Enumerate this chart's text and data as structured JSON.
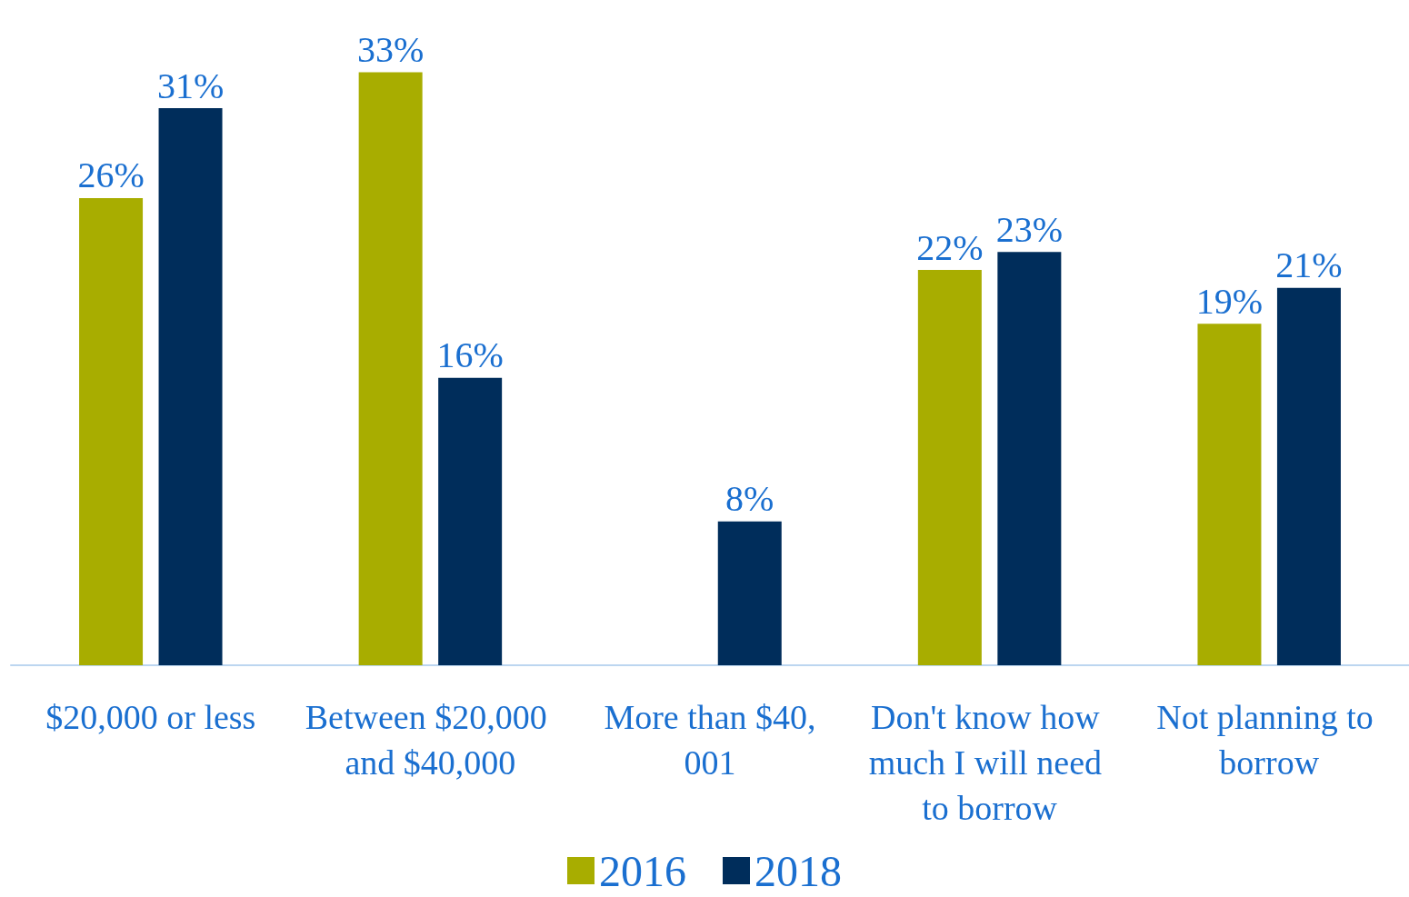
{
  "chart_data": {
    "type": "bar",
    "categories": [
      "$20,000 or less",
      "Between $20,000 and $40,000",
      "More than $40,001",
      "Don't know how much I will need to borrow",
      "Not planning to borrow"
    ],
    "series": [
      {
        "name": "2016",
        "color": "#a8ad00",
        "values": [
          26,
          33,
          null,
          22,
          19
        ],
        "value_labels": [
          "26%",
          "33%",
          null,
          "22%",
          "19%"
        ]
      },
      {
        "name": "2018",
        "color": "#002d5b",
        "values": [
          31,
          16,
          8,
          23,
          21
        ],
        "value_labels": [
          "31%",
          "16%",
          "8%",
          "23%",
          "21%"
        ]
      }
    ],
    "legend": "bottom"
  }
}
